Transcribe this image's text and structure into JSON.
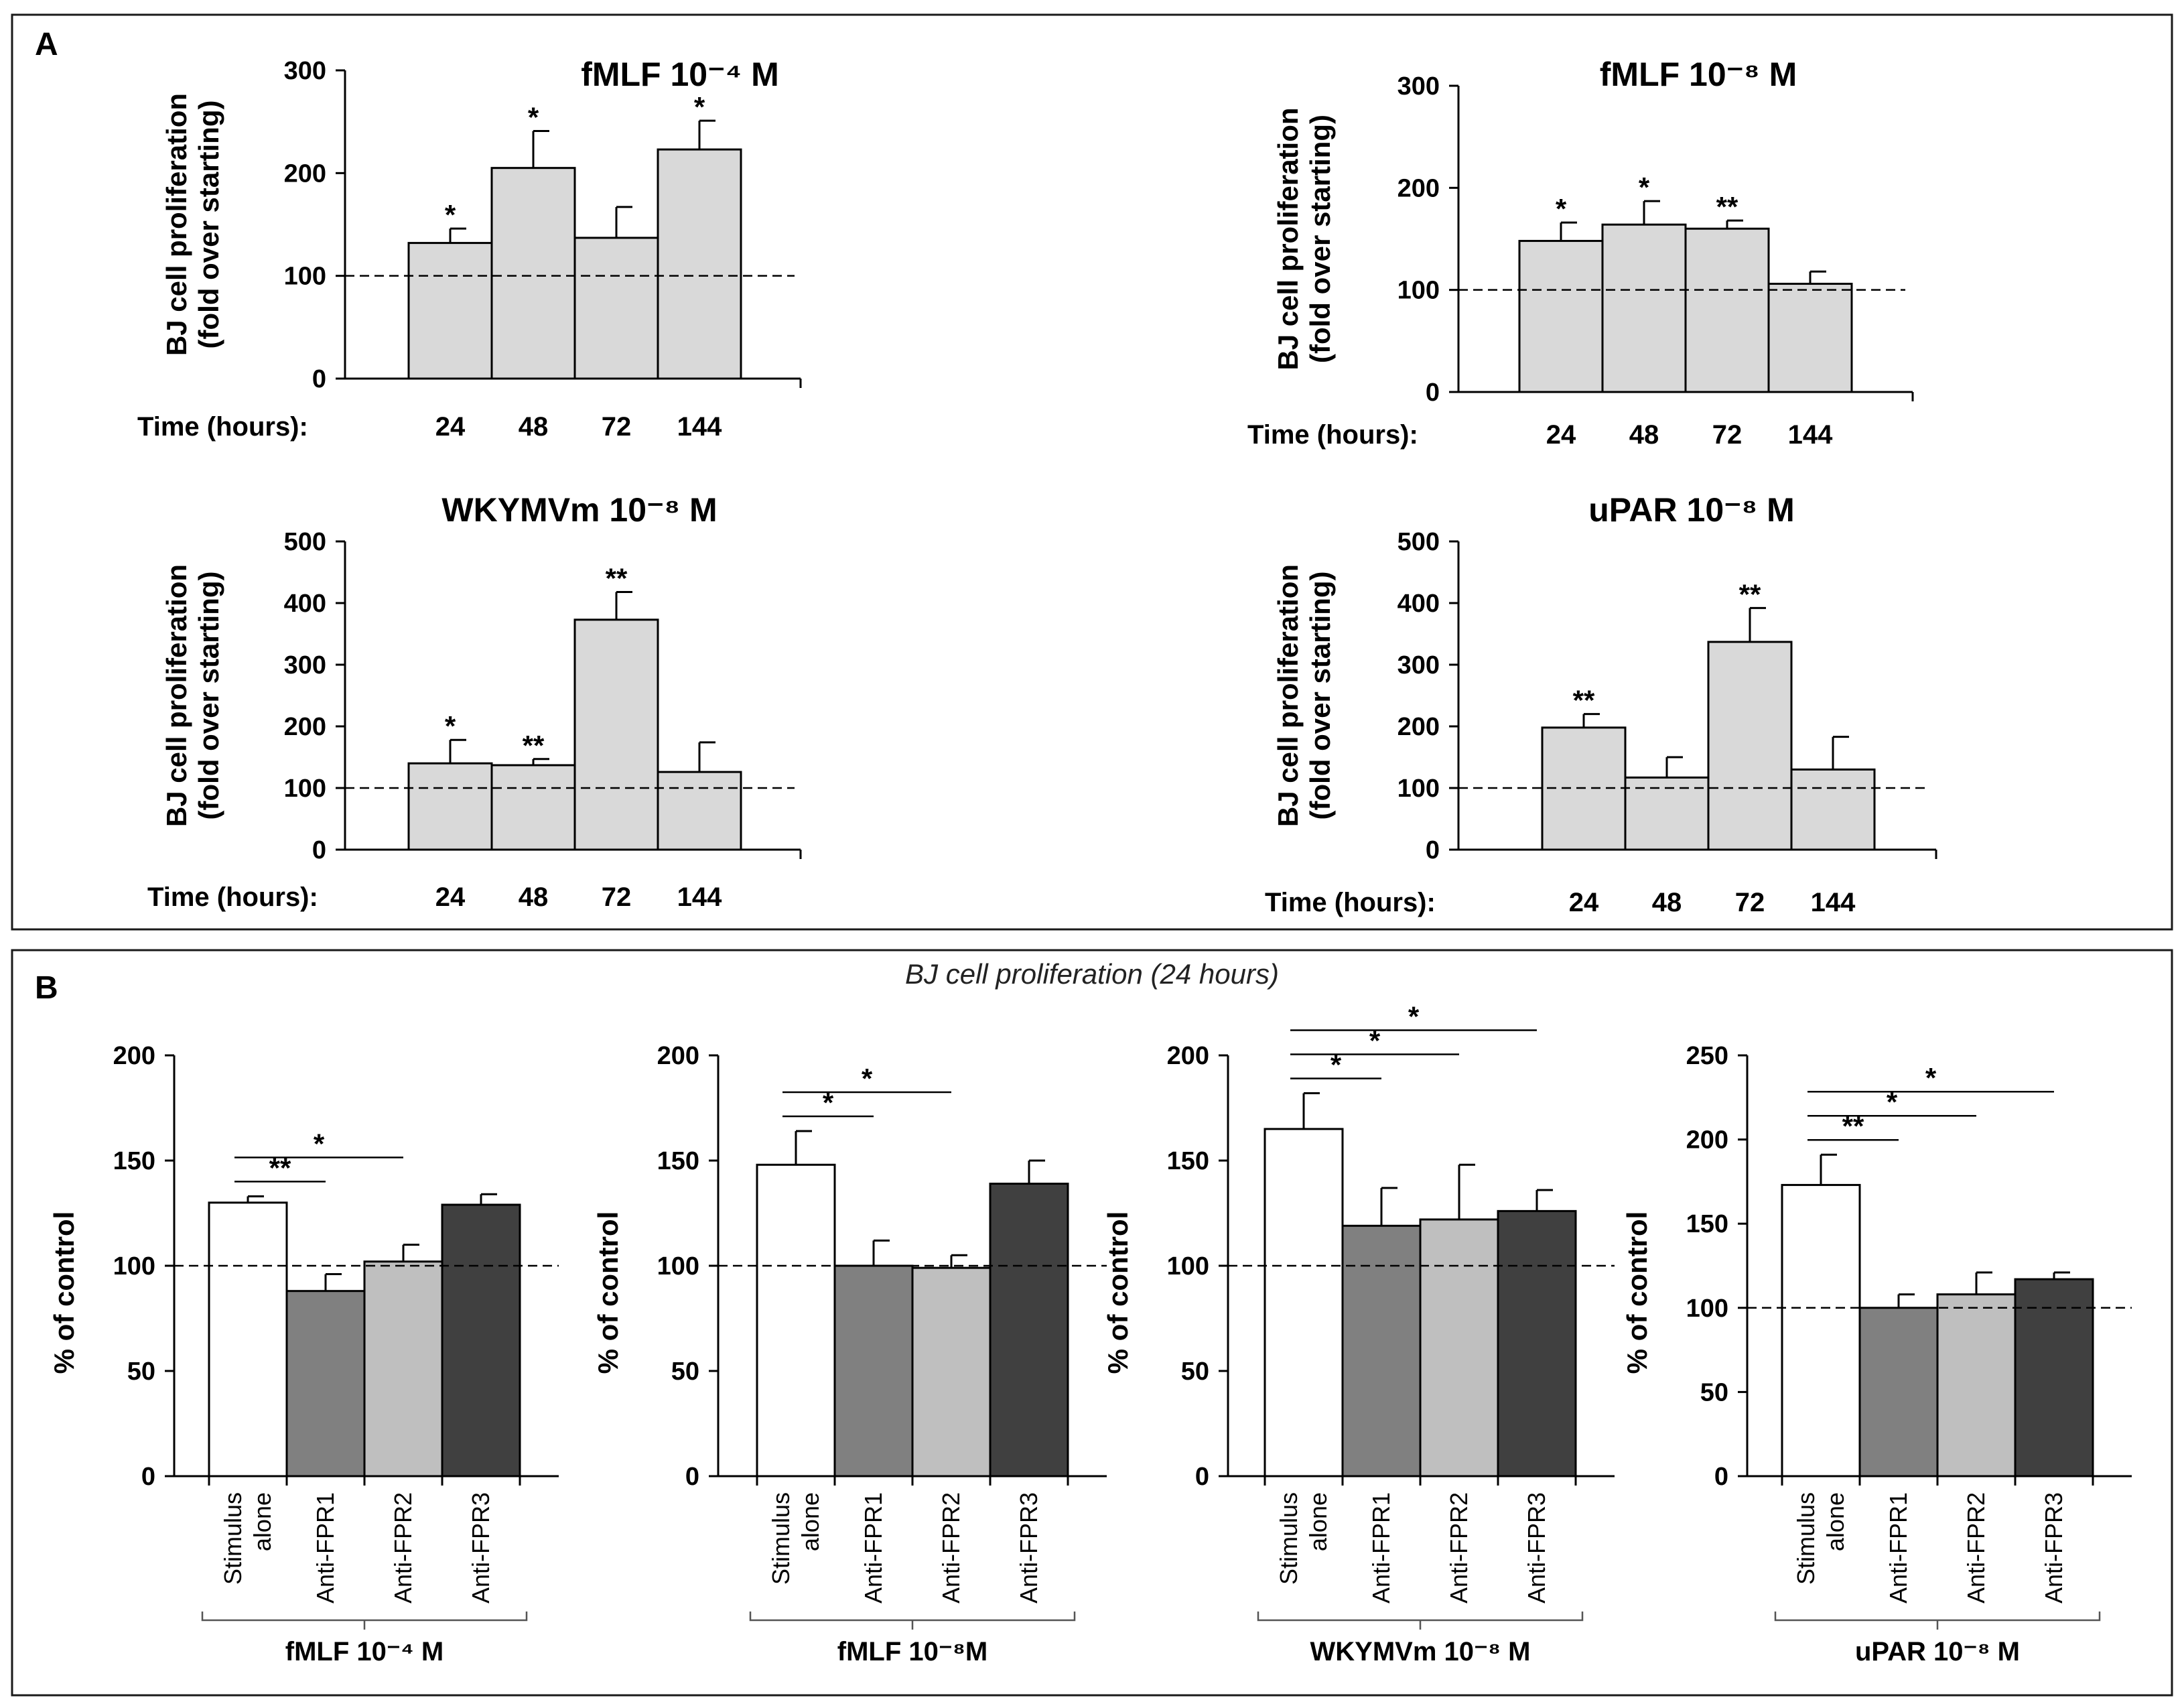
{
  "figure": {
    "panel_A_letter": "A",
    "panel_B_letter": "B",
    "panel_B_subtitle": "BJ cell proliferation (24 hours)"
  },
  "colors": {
    "panelA_bar": "#d9d9d9",
    "stimulus_alone": "#ffffff",
    "anti_fpr1": "#808080",
    "anti_fpr2": "#bfbfbf",
    "anti_fpr3": "#404040"
  },
  "chart_data": [
    {
      "id": "A1",
      "panel": "A",
      "type": "bar",
      "title": "fMLF 10⁻⁴ M",
      "ylabel": [
        "BJ cell proliferation",
        "(fold over starting)"
      ],
      "xlabel": "Time (hours):",
      "categories": [
        "24",
        "48",
        "72",
        "144"
      ],
      "values": [
        132,
        205,
        137,
        223
      ],
      "errors": [
        14,
        36,
        30,
        28
      ],
      "significance": [
        "*",
        "*",
        "",
        "*"
      ],
      "ylim": [
        0,
        300
      ],
      "yticks": [
        "0",
        "100",
        "200",
        "300"
      ],
      "reference_line": 100
    },
    {
      "id": "A2",
      "panel": "A",
      "type": "bar",
      "title": "fMLF 10⁻⁸ M",
      "ylabel": [
        "BJ cell proliferation",
        "(fold over starting)"
      ],
      "xlabel": "Time (hours):",
      "categories": [
        "24",
        "48",
        "72",
        "144"
      ],
      "values": [
        148,
        164,
        160,
        106
      ],
      "errors": [
        18,
        23,
        8,
        12
      ],
      "significance": [
        "*",
        "*",
        "**",
        ""
      ],
      "ylim": [
        0,
        300
      ],
      "yticks": [
        "0",
        "100",
        "200",
        "300"
      ],
      "reference_line": 100
    },
    {
      "id": "A3",
      "panel": "A",
      "type": "bar",
      "title": "WKYMVm 10⁻⁸ M",
      "ylabel": [
        "BJ cell proliferation",
        "(fold over starting)"
      ],
      "xlabel": "Time (hours):",
      "categories": [
        "24",
        "48",
        "72",
        "144"
      ],
      "values": [
        140,
        137,
        373,
        126
      ],
      "errors": [
        38,
        10,
        45,
        48
      ],
      "significance": [
        "*",
        "**",
        "**",
        ""
      ],
      "ylim": [
        0,
        500
      ],
      "yticks": [
        "0",
        "100",
        "200",
        "300",
        "400",
        "500"
      ],
      "reference_line": 100
    },
    {
      "id": "A4",
      "panel": "A",
      "type": "bar",
      "title": "uPAR 10⁻⁸ M",
      "ylabel": [
        "BJ cell proliferation",
        "(fold over starting)"
      ],
      "xlabel": "Time (hours):",
      "categories": [
        "24",
        "48",
        "72",
        "144"
      ],
      "values": [
        198,
        117,
        337,
        130
      ],
      "errors": [
        22,
        33,
        55,
        53
      ],
      "significance": [
        "**",
        "",
        "**",
        ""
      ],
      "ylim": [
        0,
        500
      ],
      "yticks": [
        "0",
        "100",
        "200",
        "300",
        "400",
        "500"
      ],
      "reference_line": 100
    },
    {
      "id": "B1",
      "panel": "B",
      "type": "bar",
      "group_label": "fMLF  10⁻⁴ M",
      "ylabel": "% of control",
      "categories": [
        "Stimulus alone",
        "Anti-FPR1",
        "Anti-FPR2",
        "Anti-FPR3"
      ],
      "values": [
        130,
        88,
        102,
        129
      ],
      "errors": [
        3,
        8,
        8,
        5
      ],
      "ylim": [
        0,
        200
      ],
      "yticks": [
        "0",
        "50",
        "100",
        "150",
        "200"
      ],
      "reference_line": 100,
      "comparisons": [
        {
          "from": 0,
          "to": 1,
          "label": "**"
        },
        {
          "from": 0,
          "to": 2,
          "label": "*"
        }
      ]
    },
    {
      "id": "B2",
      "panel": "B",
      "type": "bar",
      "group_label": "fMLF  10⁻⁸M",
      "ylabel": "% of control",
      "categories": [
        "Stimulus alone",
        "Anti-FPR1",
        "Anti-FPR2",
        "Anti-FPR3"
      ],
      "values": [
        148,
        100,
        99,
        139
      ],
      "errors": [
        16,
        12,
        6,
        11
      ],
      "ylim": [
        0,
        200
      ],
      "yticks": [
        "0",
        "50",
        "100",
        "150",
        "200"
      ],
      "reference_line": 100,
      "comparisons": [
        {
          "from": 0,
          "to": 1,
          "label": "*"
        },
        {
          "from": 0,
          "to": 2,
          "label": "*"
        }
      ]
    },
    {
      "id": "B3",
      "panel": "B",
      "type": "bar",
      "group_label": "WKYMVm 10⁻⁸ M",
      "ylabel": "% of control",
      "categories": [
        "Stimulus alone",
        "Anti-FPR1",
        "Anti-FPR2",
        "Anti-FPR3"
      ],
      "values": [
        165,
        119,
        122,
        126
      ],
      "errors": [
        17,
        18,
        26,
        10
      ],
      "ylim": [
        0,
        200
      ],
      "yticks": [
        "0",
        "50",
        "100",
        "150",
        "200"
      ],
      "reference_line": 100,
      "comparisons": [
        {
          "from": 0,
          "to": 1,
          "label": "*"
        },
        {
          "from": 0,
          "to": 2,
          "label": "*"
        },
        {
          "from": 0,
          "to": 3,
          "label": "*"
        }
      ]
    },
    {
      "id": "B4",
      "panel": "B",
      "type": "bar",
      "group_label": "uPAR  10⁻⁸ M",
      "ylabel": "% of control",
      "categories": [
        "Stimulus alone",
        "Anti-FPR1",
        "Anti-FPR2",
        "Anti-FPR3"
      ],
      "values": [
        173,
        100,
        108,
        117
      ],
      "errors": [
        18,
        8,
        13,
        4
      ],
      "ylim": [
        0,
        250
      ],
      "yticks": [
        "0",
        "50",
        "100",
        "150",
        "200",
        "250"
      ],
      "reference_line": 100,
      "comparisons": [
        {
          "from": 0,
          "to": 1,
          "label": "**"
        },
        {
          "from": 0,
          "to": 2,
          "label": "*"
        },
        {
          "from": 0,
          "to": 3,
          "label": "*"
        }
      ]
    }
  ]
}
